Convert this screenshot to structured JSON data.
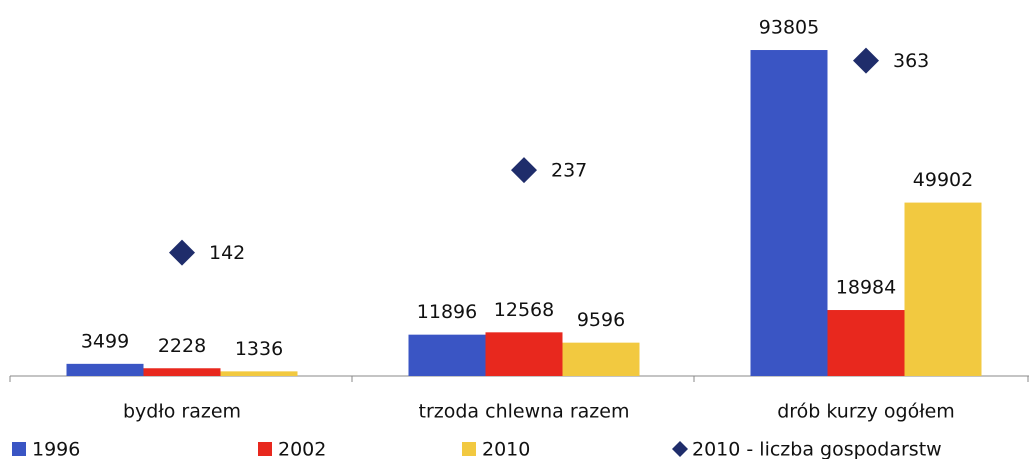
{
  "chart_data": {
    "type": "bar",
    "categories": [
      "bydło razem",
      "trzoda chlewna razem",
      "drób kurzy ogółem"
    ],
    "series": [
      {
        "name": "1996",
        "color": "#3a55c4",
        "values": [
          3499,
          11896,
          93805
        ]
      },
      {
        "name": "2002",
        "color": "#e8281e",
        "values": [
          2228,
          12568,
          18984
        ]
      },
      {
        "name": "2010",
        "color": "#f2c940",
        "values": [
          1336,
          9596,
          49902
        ]
      },
      {
        "name": "2010 - liczba gospodarstw",
        "color": "#1f2d6b",
        "type": "scatter",
        "marker": "diamond",
        "axis": "y2",
        "values": [
          142,
          237,
          363
        ]
      }
    ],
    "ylim": [
      0,
      100000
    ],
    "y2lim": [
      0,
      400
    ],
    "legend": "bottom"
  }
}
